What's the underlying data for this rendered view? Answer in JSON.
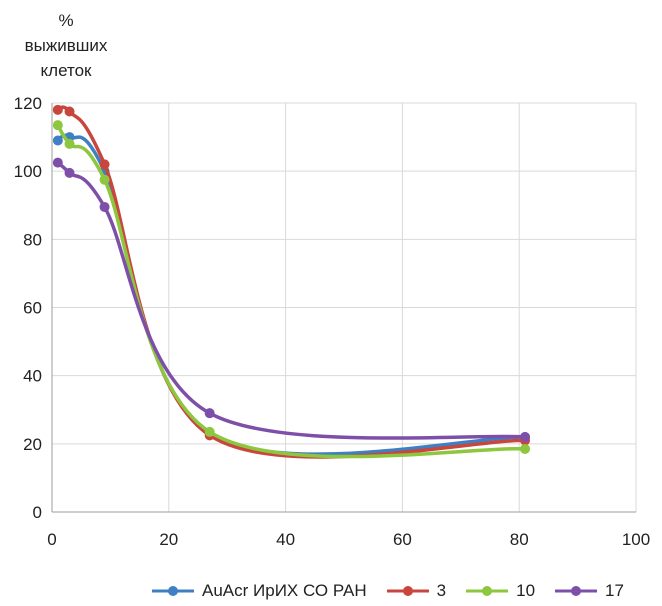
{
  "chart_data": {
    "type": "line",
    "title": "",
    "ylabel": "% выживших клеток",
    "ylabel_lines": [
      "%",
      "выживших",
      "клеток"
    ],
    "xlabel": "",
    "xlim": [
      0,
      100
    ],
    "ylim": [
      0,
      120
    ],
    "xticks": [
      0,
      20,
      40,
      60,
      80,
      100
    ],
    "yticks": [
      0,
      20,
      40,
      60,
      80,
      100,
      120
    ],
    "xtick_labels": [
      "0",
      "20",
      "40",
      "60",
      "80",
      "100"
    ],
    "ytick_labels": [
      "0",
      "20",
      "40",
      "60",
      "80",
      "100",
      "120"
    ],
    "grid": true,
    "legend_position": "bottom",
    "series": [
      {
        "name": "AuAcr ИрИХ СО РАН",
        "color": "#3f7fc3",
        "x": [
          1,
          3,
          9,
          27,
          81
        ],
        "y": [
          109,
          110,
          100,
          23,
          22
        ]
      },
      {
        "name": "3",
        "color": "#c8463d",
        "x": [
          1,
          3,
          9,
          27,
          81
        ],
        "y": [
          118,
          117.5,
          102,
          22.5,
          21
        ]
      },
      {
        "name": "10",
        "color": "#8dc63f",
        "x": [
          1,
          3,
          9,
          27,
          81
        ],
        "y": [
          113.5,
          108,
          97.5,
          23.5,
          18.5
        ]
      },
      {
        "name": "17",
        "color": "#7e4fa8",
        "x": [
          1,
          3,
          9,
          27,
          81
        ],
        "y": [
          102.5,
          99.5,
          89.5,
          29,
          22
        ]
      }
    ]
  }
}
